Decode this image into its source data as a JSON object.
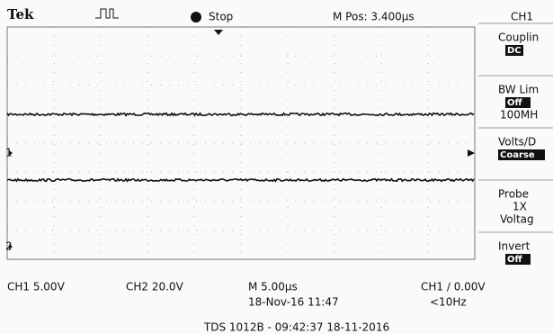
{
  "header": {
    "brand": "Tek",
    "state": "Stop",
    "position": "M Pos: 3.400µs",
    "channel": "CH1"
  },
  "menu": [
    {
      "title": "Couplin",
      "value": "DC"
    },
    {
      "title": "BW Lim",
      "value": "Off",
      "extra": "100MH"
    },
    {
      "title": "Volts/D",
      "value": "Coarse"
    },
    {
      "title": "Probe",
      "value": "1X",
      "extra": "Voltag"
    },
    {
      "title": "Invert",
      "value": "Off"
    }
  ],
  "markers": {
    "ch1": "1",
    "ch2": "2"
  },
  "status": {
    "ch1": "CH1  5.00V",
    "ch2": "CH2  20.0V",
    "timebase": "M 5.00µs",
    "trigger": "CH1 ∕ 0.00V",
    "datetime": "18-Nov-16 11:47",
    "frequency": "<10Hz"
  },
  "footer": "TDS 1012B - 09:42:37   18-11-2016"
}
